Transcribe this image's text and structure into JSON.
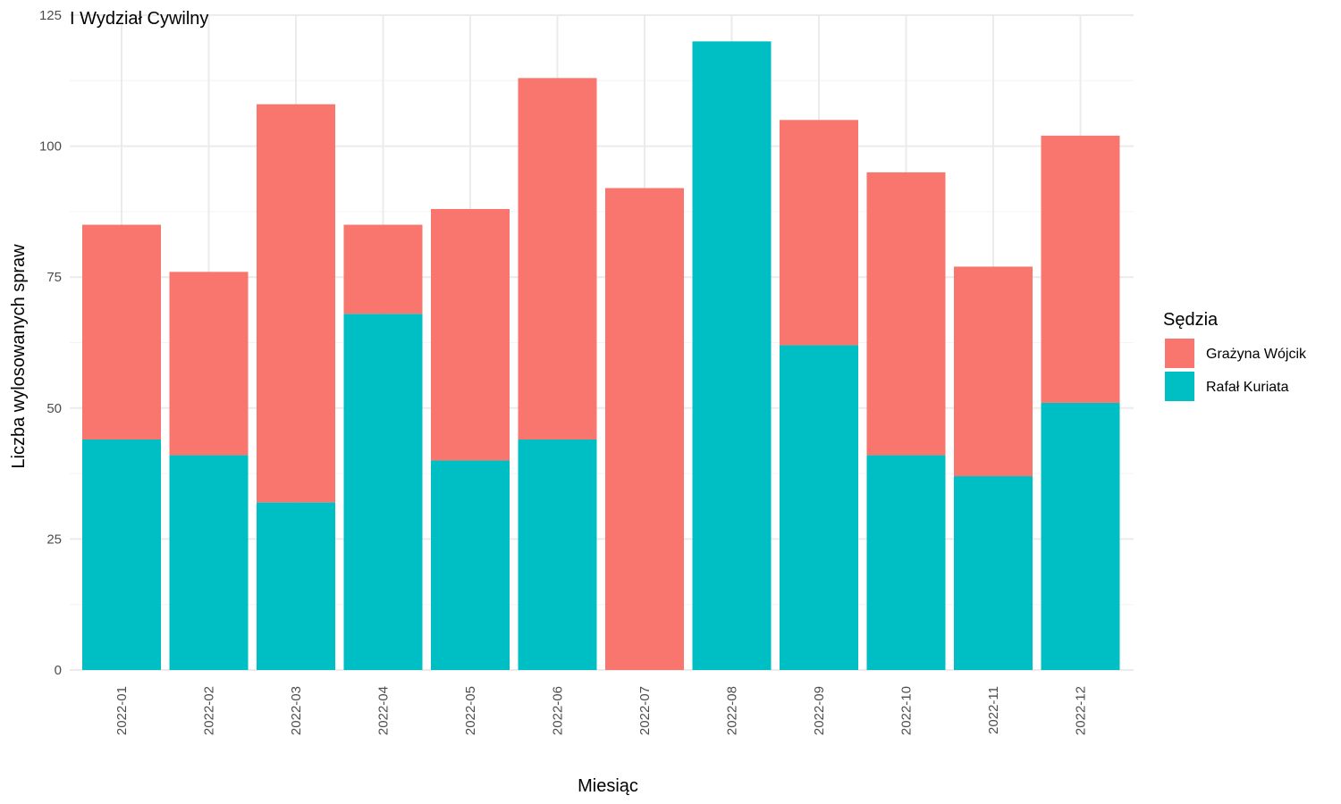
{
  "chart_data": {
    "type": "bar",
    "stacked": true,
    "title": "I Wydział Cywilny",
    "xlabel": "Miesiąc",
    "ylabel": "Liczba wylosowanych spraw",
    "ylim": [
      0,
      125
    ],
    "y_ticks": [
      "0",
      "25",
      "50",
      "75",
      "100",
      "125"
    ],
    "grid": true,
    "legend": {
      "title": "Sędzia",
      "position": "right"
    },
    "categories": [
      "2022-01",
      "2022-02",
      "2022-03",
      "2022-04",
      "2022-05",
      "2022-06",
      "2022-07",
      "2022-08",
      "2022-09",
      "2022-10",
      "2022-11",
      "2022-12"
    ],
    "series": [
      {
        "name": "Grażyna Wójcik",
        "color": "#F8766D",
        "values": [
          41,
          35,
          76,
          17,
          48,
          69,
          92,
          0,
          43,
          54,
          40,
          51
        ]
      },
      {
        "name": "Rafał Kuriata",
        "color": "#00BFC4",
        "values": [
          44,
          41,
          32,
          68,
          40,
          44,
          0,
          120,
          62,
          41,
          37,
          51
        ]
      }
    ]
  }
}
